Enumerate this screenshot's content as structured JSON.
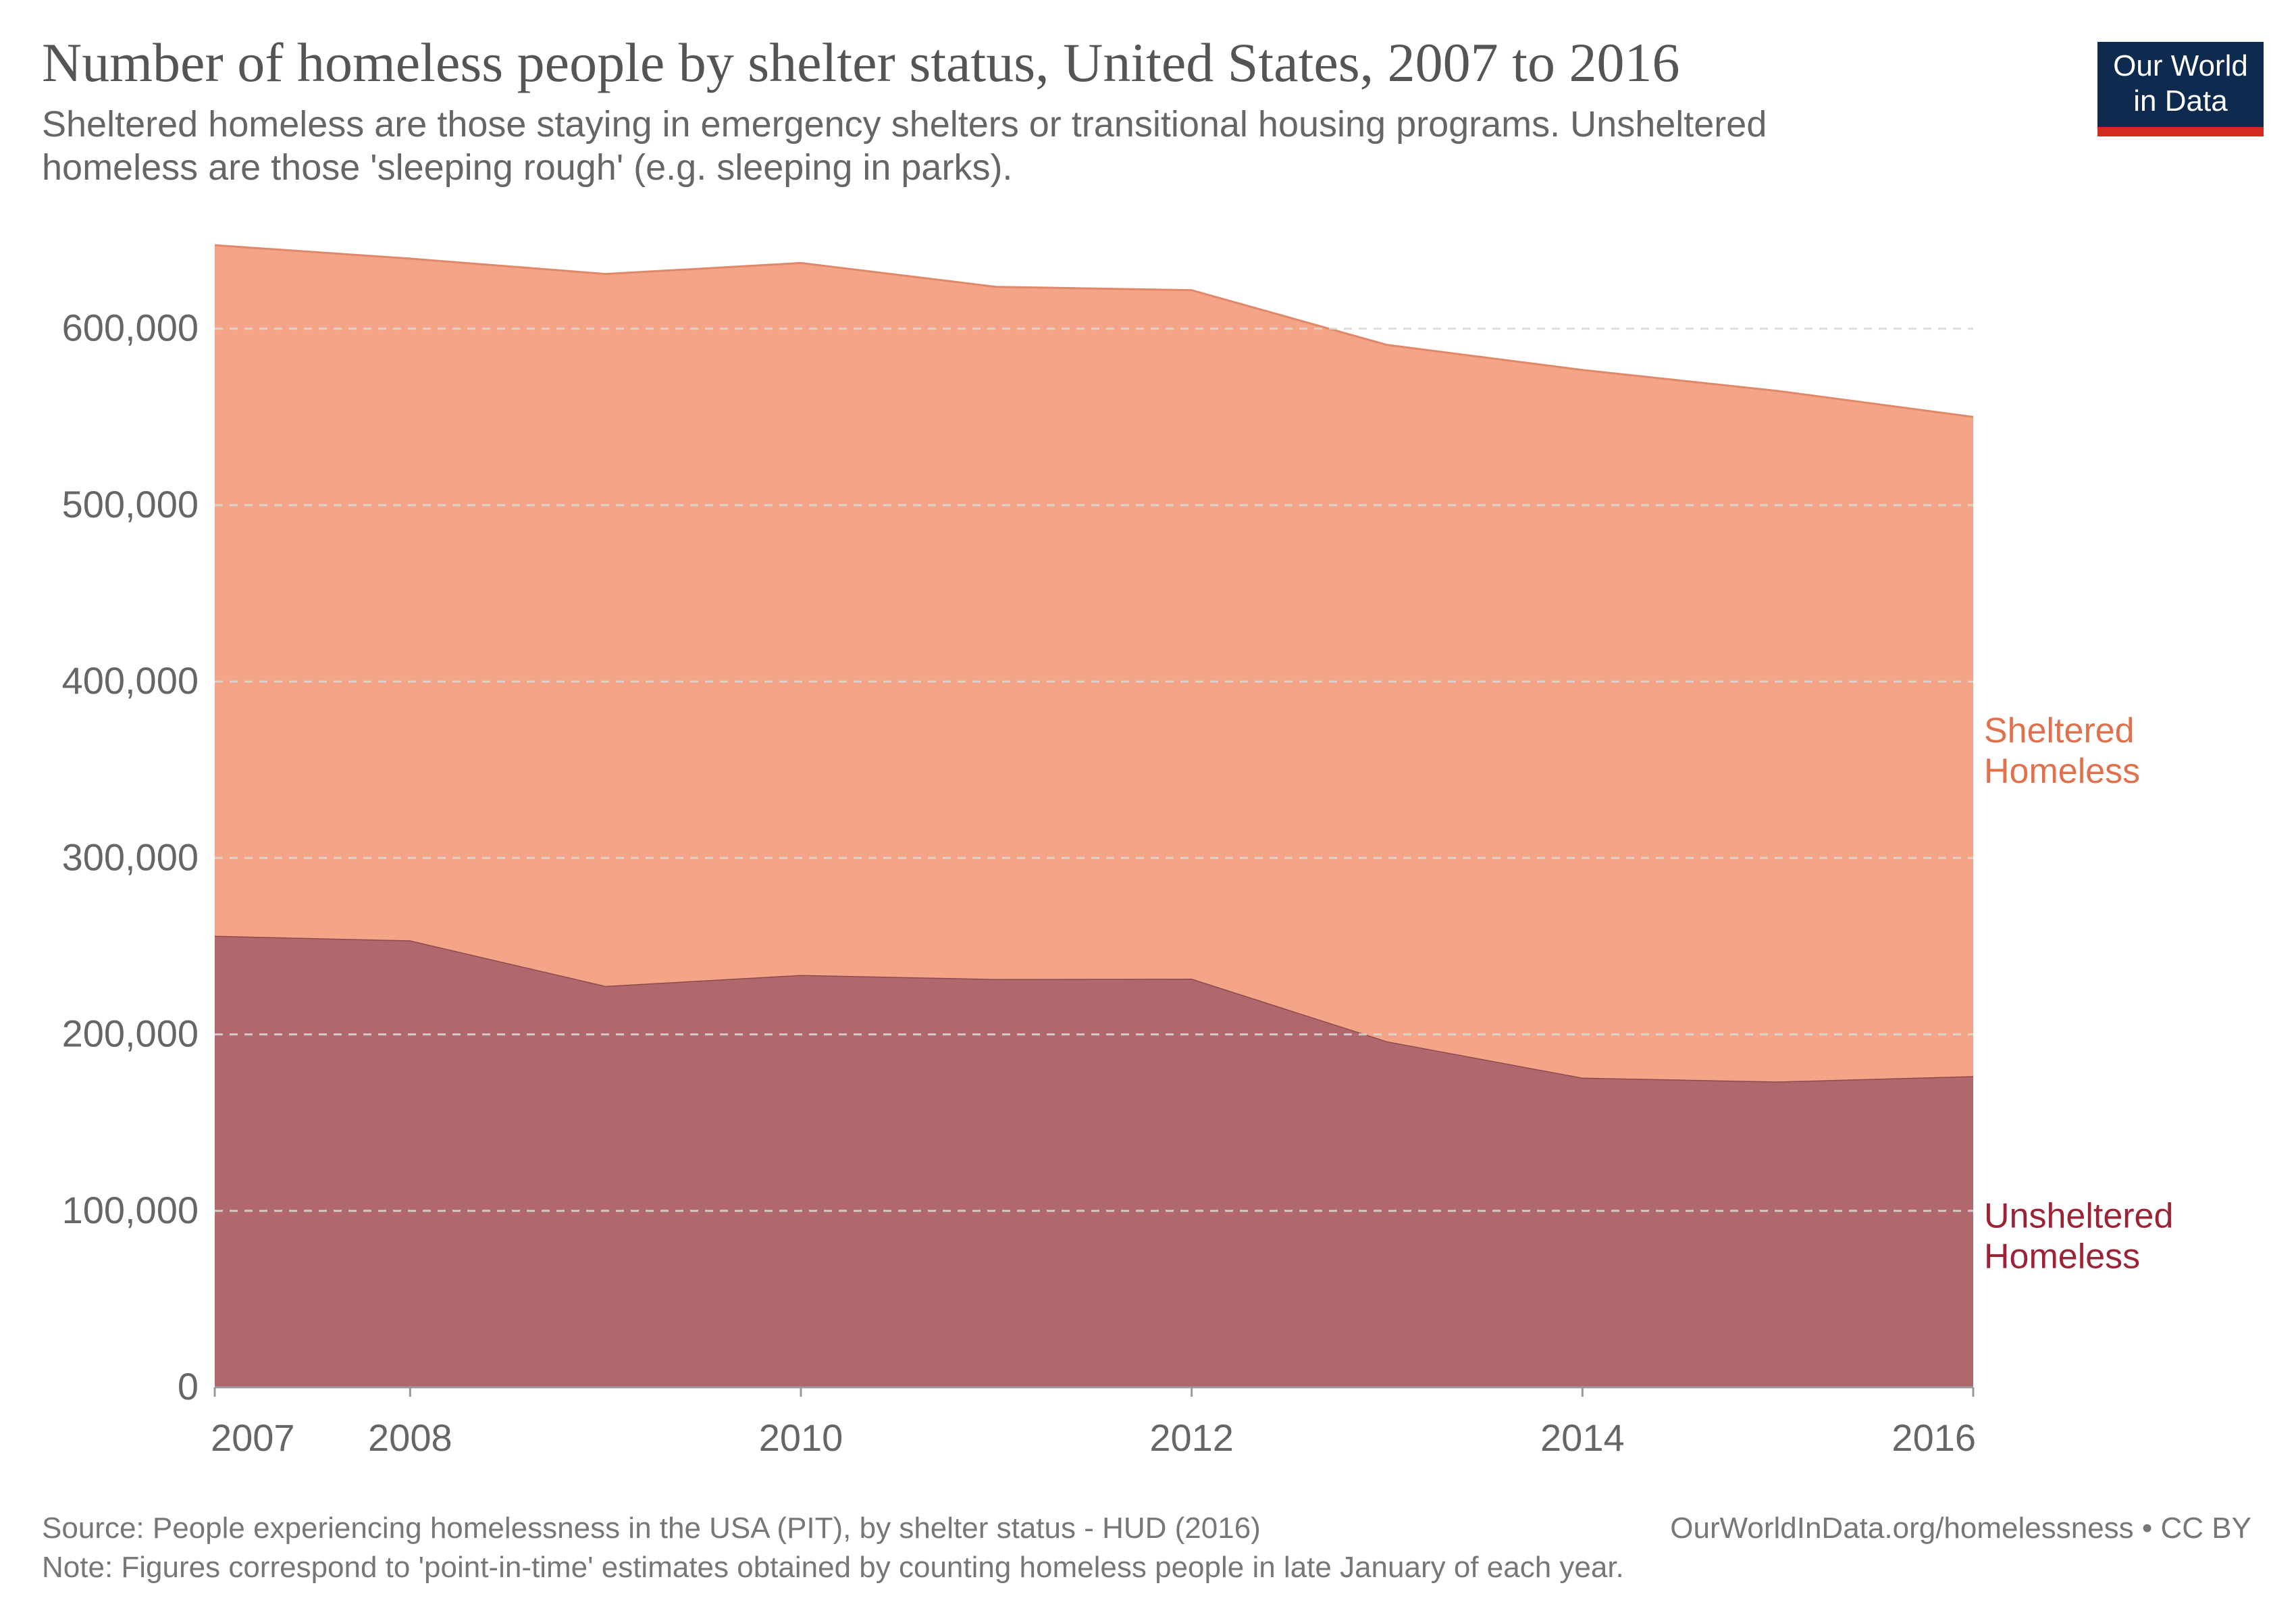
{
  "header": {
    "title": "Number of homeless people by shelter status, United States, 2007 to 2016",
    "subtitle": "Sheltered homeless are those staying in emergency shelters or transitional housing programs. Unsheltered homeless are those 'sleeping rough' (e.g. sleeping in parks).",
    "logo_line1": "Our World",
    "logo_line2": "in Data"
  },
  "footer": {
    "source": "Source: People experiencing homelessness in the USA (PIT), by shelter status - HUD (2016)",
    "note": "Note: Figures correspond to 'point-in-time' estimates obtained by counting homeless people in late January of each year.",
    "attribution": "OurWorldInData.org/homelessness • CC BY"
  },
  "chart_data": {
    "type": "area",
    "stacked": true,
    "x": [
      2007,
      2008,
      2009,
      2010,
      2011,
      2012,
      2013,
      2014,
      2015,
      2016
    ],
    "xticks": [
      "2007",
      "2008",
      "2010",
      "2012",
      "2014",
      "2016"
    ],
    "ylim": [
      0,
      650000
    ],
    "yticks": [
      {
        "value": 0,
        "label": "0"
      },
      {
        "value": 100000,
        "label": "100,000"
      },
      {
        "value": 200000,
        "label": "200,000"
      },
      {
        "value": 300000,
        "label": "300,000"
      },
      {
        "value": 400000,
        "label": "400,000"
      },
      {
        "value": 500000,
        "label": "500,000"
      },
      {
        "value": 600000,
        "label": "600,000"
      }
    ],
    "grid": "horizontal dashed",
    "legend": "inline-right",
    "series": [
      {
        "name": "Unsheltered Homeless",
        "label_lines": [
          "Unsheltered",
          "Homeless"
        ],
        "color": "#b0686c",
        "label_color": "#9b2335",
        "values": [
          255900,
          253300,
          227500,
          233700,
          231400,
          231600,
          196100,
          175500,
          173300,
          176400
        ]
      },
      {
        "name": "Sheltered Homeless",
        "label_lines": [
          "Sheltered",
          "Homeless"
        ],
        "color": "#f4a487",
        "label_color": "#e0714d",
        "values": [
          391400,
          386400,
          403500,
          403500,
          392300,
          390200,
          394700,
          401100,
          391400,
          373600
        ]
      }
    ]
  }
}
